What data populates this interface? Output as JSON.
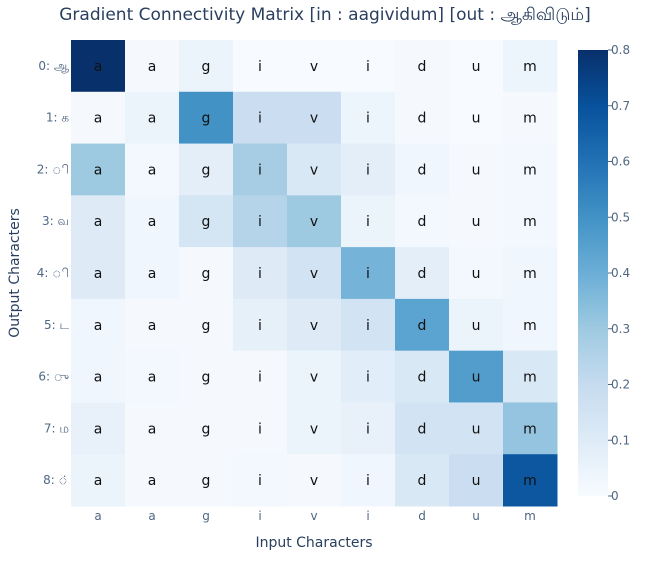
{
  "chart_data": {
    "type": "heatmap",
    "title": "Gradient Connectivity Matrix [in : aagividum] [out : ஆகிவிடும்]",
    "xlabel": "Input Characters",
    "ylabel": "Output Characters",
    "x_tick_labels": [
      "a",
      "a",
      "g",
      "i",
      "v",
      "i",
      "d",
      "u",
      "m"
    ],
    "y_tick_labels": [
      "0: ஆ",
      "1: க",
      "2: ி",
      "3: வ",
      "4: ி",
      "5: ட",
      "6: ு",
      "7: ம",
      "8: ்"
    ],
    "cell_text": [
      "a",
      "a",
      "g",
      "i",
      "v",
      "i",
      "d",
      "u",
      "m"
    ],
    "values": [
      [
        0.8,
        0.01,
        0.05,
        0.0,
        0.0,
        0.0,
        0.01,
        0.0,
        0.04
      ],
      [
        0.01,
        0.05,
        0.5,
        0.18,
        0.18,
        0.04,
        0.01,
        0.0,
        0.01
      ],
      [
        0.3,
        0.02,
        0.08,
        0.28,
        0.12,
        0.08,
        0.03,
        0.01,
        0.02
      ],
      [
        0.1,
        0.03,
        0.14,
        0.24,
        0.3,
        0.05,
        0.02,
        0.01,
        0.02
      ],
      [
        0.1,
        0.03,
        0.01,
        0.1,
        0.15,
        0.38,
        0.08,
        0.02,
        0.03
      ],
      [
        0.03,
        0.01,
        0.01,
        0.07,
        0.1,
        0.15,
        0.44,
        0.05,
        0.03
      ],
      [
        0.03,
        0.02,
        0.01,
        0.01,
        0.05,
        0.09,
        0.12,
        0.46,
        0.12
      ],
      [
        0.06,
        0.01,
        0.01,
        0.01,
        0.05,
        0.06,
        0.15,
        0.15,
        0.32
      ],
      [
        0.05,
        0.01,
        0.01,
        0.02,
        0.01,
        0.03,
        0.12,
        0.18,
        0.68
      ]
    ],
    "zmin": 0,
    "zmax": 0.8,
    "colorscale": "Blues",
    "colorbar_ticks": [
      0,
      0.1,
      0.2,
      0.3,
      0.4,
      0.5,
      0.6,
      0.7,
      0.8
    ],
    "colorbar_tick_labels": [
      "0",
      "0.1",
      "0.2",
      "0.3",
      "0.4",
      "0.5",
      "0.6",
      "0.7",
      "0.8"
    ]
  }
}
